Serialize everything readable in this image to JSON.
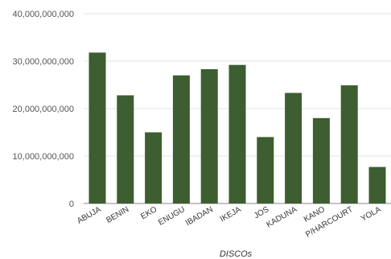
{
  "chart_data": {
    "type": "bar",
    "title": "",
    "xlabel": "DISCOs",
    "ylabel": "",
    "ylim": [
      0,
      40000000000
    ],
    "yticks": [
      0,
      10000000000,
      20000000000,
      30000000000,
      40000000000
    ],
    "ytick_labels": [
      "0",
      "10,000,000,000",
      "20,000,000,000",
      "30,000,000,000",
      "40,000,000,000"
    ],
    "categories": [
      "ABUJA",
      "BENIN",
      "EKO",
      "ENUGU",
      "IBADAN",
      "IKEJA",
      "JOS",
      "KADUNA",
      "KANO",
      "P/HARCOURT",
      "YOLA"
    ],
    "values": [
      31800000000,
      22800000000,
      15000000000,
      27000000000,
      28300000000,
      29200000000,
      14000000000,
      23300000000,
      18000000000,
      24900000000,
      7700000000
    ],
    "bar_color": "#3d5e30",
    "grid": true,
    "legend": "none"
  }
}
